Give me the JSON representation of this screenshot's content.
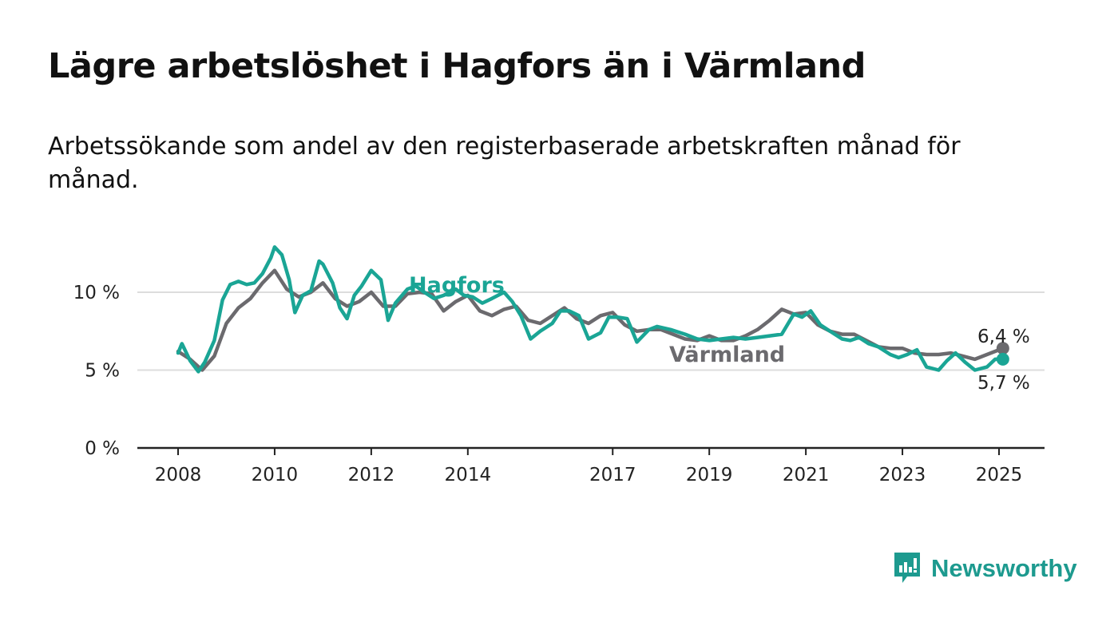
{
  "title": "Lägre arbetslöshet i Hagfors än i Värmland",
  "subtitle": "Arbetssökande som andel av den registerbaserade arbetskraften månad för månad.",
  "logo_text": "Newsworthy",
  "colors": {
    "hagfors": "#1aa595",
    "varmland": "#6b6a6e",
    "grid": "#dddddd",
    "axis": "#222222",
    "logo": "#1d9a8f"
  },
  "chart_data": {
    "type": "line",
    "title": "Lägre arbetslöshet i Hagfors än i Värmland",
    "subtitle": "Arbetssökande som andel av den registerbaserade arbetskraften månad för månad.",
    "xlabel": "",
    "ylabel": "",
    "ylim": [
      0,
      14
    ],
    "xlim": [
      2007.1,
      2025.9
    ],
    "yticks": [
      {
        "value": 0,
        "label": "0 %"
      },
      {
        "value": 5,
        "label": "5 %"
      },
      {
        "value": 10,
        "label": "10 %"
      }
    ],
    "xticks": [
      {
        "value": 2008,
        "label": "2008"
      },
      {
        "value": 2010,
        "label": "2010"
      },
      {
        "value": 2012,
        "label": "2012"
      },
      {
        "value": 2014,
        "label": "2014"
      },
      {
        "value": 2017,
        "label": "2017"
      },
      {
        "value": 2019,
        "label": "2019"
      },
      {
        "value": 2021,
        "label": "2021"
      },
      {
        "value": 2023,
        "label": "2023"
      },
      {
        "value": 2025,
        "label": "2025"
      }
    ],
    "grid": true,
    "series": [
      {
        "name": "Värmland",
        "end_label": "6,4 %",
        "x": [
          2008.0,
          2008.25,
          2008.5,
          2008.75,
          2009.0,
          2009.25,
          2009.5,
          2009.75,
          2010.0,
          2010.25,
          2010.5,
          2010.75,
          2011.0,
          2011.25,
          2011.5,
          2011.75,
          2012.0,
          2012.25,
          2012.5,
          2012.75,
          2013.0,
          2013.25,
          2013.5,
          2013.75,
          2014.0,
          2014.25,
          2014.5,
          2014.75,
          2015.0,
          2015.25,
          2015.5,
          2015.75,
          2016.0,
          2016.25,
          2016.5,
          2016.75,
          2017.0,
          2017.25,
          2017.5,
          2017.75,
          2018.0,
          2018.25,
          2018.5,
          2018.75,
          2019.0,
          2019.25,
          2019.5,
          2019.75,
          2020.0,
          2020.25,
          2020.5,
          2020.75,
          2021.0,
          2021.25,
          2021.5,
          2021.75,
          2022.0,
          2022.25,
          2022.5,
          2022.75,
          2023.0,
          2023.25,
          2023.5,
          2023.75,
          2024.0,
          2024.25,
          2024.5,
          2024.75,
          2025.0,
          2025.08
        ],
        "y": [
          6.2,
          5.7,
          5.0,
          5.9,
          8.0,
          9.0,
          9.6,
          10.6,
          11.4,
          10.2,
          9.7,
          10.0,
          10.6,
          9.6,
          9.1,
          9.4,
          10.0,
          9.1,
          9.1,
          9.9,
          10.0,
          9.9,
          8.8,
          9.4,
          9.8,
          8.8,
          8.5,
          8.9,
          9.1,
          8.2,
          8.0,
          8.5,
          9.0,
          8.3,
          8.0,
          8.5,
          8.7,
          7.9,
          7.5,
          7.6,
          7.6,
          7.3,
          7.0,
          6.9,
          7.2,
          6.9,
          6.9,
          7.2,
          7.6,
          8.2,
          8.9,
          8.6,
          8.7,
          7.9,
          7.5,
          7.3,
          7.3,
          6.9,
          6.5,
          6.4,
          6.4,
          6.1,
          6.0,
          6.0,
          6.1,
          5.9,
          5.7,
          6.0,
          6.3,
          6.4
        ]
      },
      {
        "name": "Hagfors",
        "end_label": "5,7 %",
        "x": [
          2008.0,
          2008.08,
          2008.25,
          2008.42,
          2008.55,
          2008.75,
          2008.92,
          2009.08,
          2009.25,
          2009.42,
          2009.58,
          2009.75,
          2009.92,
          2010.0,
          2010.15,
          2010.3,
          2010.42,
          2010.58,
          2010.75,
          2010.92,
          2011.0,
          2011.2,
          2011.35,
          2011.5,
          2011.65,
          2011.8,
          2012.0,
          2012.2,
          2012.35,
          2012.5,
          2012.75,
          2012.92,
          2013.1,
          2013.3,
          2013.5,
          2013.75,
          2013.92,
          2014.1,
          2014.3,
          2014.5,
          2014.75,
          2014.92,
          2015.1,
          2015.3,
          2015.5,
          2015.75,
          2015.92,
          2016.1,
          2016.3,
          2016.5,
          2016.75,
          2016.92,
          2017.1,
          2017.3,
          2017.5,
          2017.75,
          2017.92,
          2018.2,
          2018.5,
          2018.75,
          2019.0,
          2019.25,
          2019.5,
          2019.75,
          2020.0,
          2020.25,
          2020.5,
          2020.75,
          2020.92,
          2021.1,
          2021.3,
          2021.5,
          2021.75,
          2021.92,
          2022.1,
          2022.3,
          2022.5,
          2022.75,
          2022.92,
          2023.1,
          2023.3,
          2023.5,
          2023.75,
          2023.92,
          2024.1,
          2024.3,
          2024.5,
          2024.75,
          2024.92,
          2025.08
        ],
        "y": [
          6.1,
          6.7,
          5.6,
          4.9,
          5.5,
          6.9,
          9.5,
          10.5,
          10.7,
          10.5,
          10.6,
          11.2,
          12.2,
          12.9,
          12.4,
          10.8,
          8.7,
          9.8,
          10.1,
          12.0,
          11.8,
          10.6,
          9.0,
          8.3,
          9.8,
          10.4,
          11.4,
          10.8,
          8.2,
          9.3,
          10.2,
          10.4,
          10.0,
          9.6,
          9.8,
          10.2,
          9.8,
          9.7,
          9.3,
          9.6,
          10.0,
          9.4,
          8.5,
          7.0,
          7.5,
          8.0,
          8.8,
          8.8,
          8.5,
          7.0,
          7.4,
          8.4,
          8.4,
          8.3,
          6.8,
          7.6,
          7.8,
          7.6,
          7.3,
          7.0,
          6.9,
          7.0,
          7.1,
          7.0,
          7.1,
          7.2,
          7.3,
          8.6,
          8.4,
          8.8,
          7.9,
          7.5,
          7.0,
          6.9,
          7.1,
          6.7,
          6.5,
          6.0,
          5.8,
          6.0,
          6.3,
          5.2,
          5.0,
          5.6,
          6.1,
          5.5,
          5.0,
          5.2,
          5.7,
          5.7
        ]
      }
    ]
  }
}
